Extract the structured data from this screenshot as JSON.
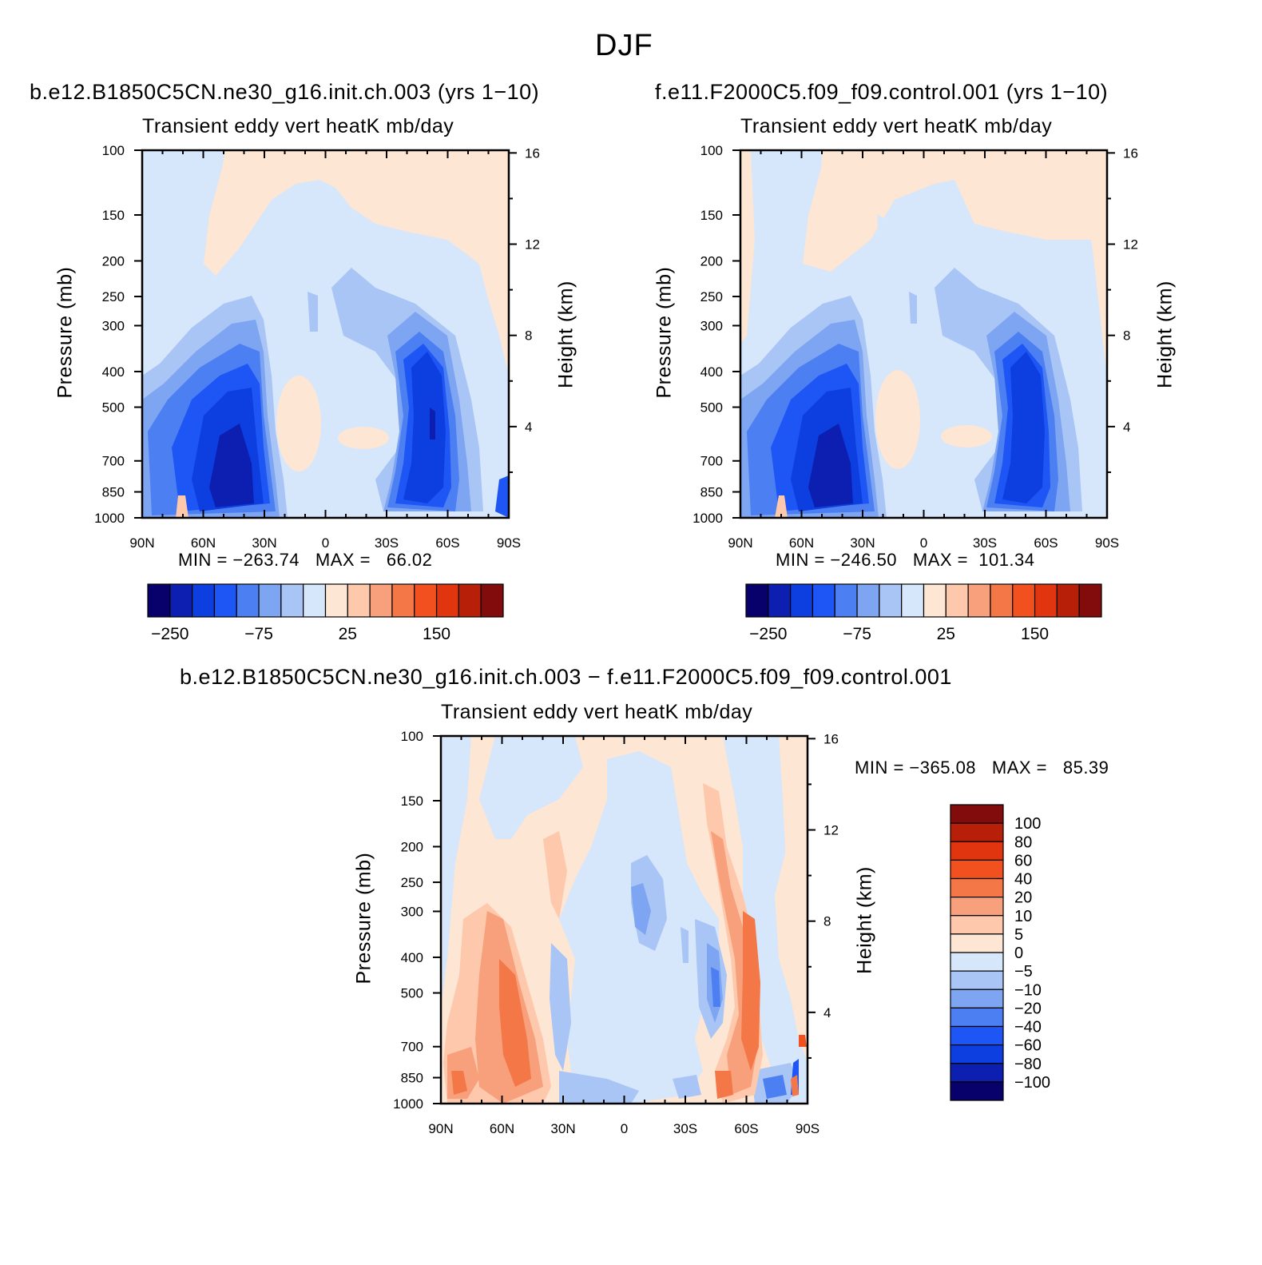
{
  "figure": {
    "title": "DJF"
  },
  "colors": {
    "levels_base": [
      "#08006b",
      "#0c1fb0",
      "#0d3ee0",
      "#1e55f5",
      "#4c7ff2",
      "#7ea5f2",
      "#a9c5f5",
      "#d6e6fb",
      "#fde6d4",
      "#fdc8ac",
      "#f7a07b",
      "#f47748",
      "#f2511f",
      "#e0350e",
      "#b81f08",
      "#820c0c"
    ],
    "levels_diff": [
      "#08006b",
      "#0c1fb0",
      "#0d3ee0",
      "#1e55f5",
      "#4c7ff2",
      "#7ea5f2",
      "#a9c5f5",
      "#d6e6fb",
      "#fde6d4",
      "#fdc8ac",
      "#f7a07b",
      "#f47748",
      "#f2511f",
      "#e0350e",
      "#b81f08",
      "#820c0c"
    ]
  },
  "chart_data": [
    {
      "type": "heatmap",
      "panel": "left",
      "title": "b.e12.B1850C5CN.ne30_g16.init.ch.003 (yrs 1−10)",
      "subtitle": "Transient eddy vert heatK mb/day",
      "xlabel": "",
      "ylabel": "Pressure (mb)",
      "ylabel_right": "Height (km)",
      "x_ticks": [
        "90N",
        "60N",
        "30N",
        "0",
        "30S",
        "60S",
        "90S"
      ],
      "y_ticks": [
        "100",
        "150",
        "200",
        "250",
        "300",
        "400",
        "500",
        "700",
        "850",
        "1000"
      ],
      "y_right_ticks": [
        "16",
        "12",
        "8",
        "4"
      ],
      "xlim": [
        90,
        -90
      ],
      "ylim": [
        1000,
        100
      ],
      "min_label": "MIN = −263.74   MAX =   66.02",
      "min": -263.74,
      "max": 66.02,
      "colorbar": {
        "orientation": "horizontal",
        "tick_labels": [
          "−250",
          "−75",
          "25",
          "150"
        ]
      }
    },
    {
      "type": "heatmap",
      "panel": "right",
      "title": "f.e11.F2000C5.f09_f09.control.001 (yrs 1−10)",
      "subtitle": "Transient eddy vert heatK mb/day",
      "xlabel": "",
      "ylabel": "Pressure (mb)",
      "ylabel_right": "Height (km)",
      "x_ticks": [
        "90N",
        "60N",
        "30N",
        "0",
        "30S",
        "60S",
        "90S"
      ],
      "y_ticks": [
        "100",
        "150",
        "200",
        "250",
        "300",
        "400",
        "500",
        "700",
        "850",
        "1000"
      ],
      "y_right_ticks": [
        "16",
        "12",
        "8",
        "4"
      ],
      "xlim": [
        90,
        -90
      ],
      "ylim": [
        1000,
        100
      ],
      "min_label": "MIN = −246.50   MAX =  101.34",
      "min": -246.5,
      "max": 101.34,
      "colorbar": {
        "orientation": "horizontal",
        "tick_labels": [
          "−250",
          "−75",
          "25",
          "150"
        ]
      }
    },
    {
      "type": "heatmap",
      "panel": "difference",
      "title": "b.e12.B1850C5CN.ne30_g16.init.ch.003 − f.e11.F2000C5.f09_f09.control.001",
      "subtitle": "Transient eddy vert heatK mb/day",
      "xlabel": "",
      "ylabel": "Pressure (mb)",
      "ylabel_right": "Height (km)",
      "x_ticks": [
        "90N",
        "60N",
        "30N",
        "0",
        "30S",
        "60S",
        "90S"
      ],
      "y_ticks": [
        "100",
        "150",
        "200",
        "250",
        "300",
        "400",
        "500",
        "700",
        "850",
        "1000"
      ],
      "y_right_ticks": [
        "16",
        "12",
        "8",
        "4"
      ],
      "xlim": [
        90,
        -90
      ],
      "ylim": [
        1000,
        100
      ],
      "min_label": "MIN = −365.08   MAX =   85.39",
      "min": -365.08,
      "max": 85.39,
      "colorbar": {
        "orientation": "vertical",
        "tick_labels": [
          "100",
          "80",
          "60",
          "40",
          "20",
          "10",
          "5",
          "0",
          "−5",
          "−10",
          "−20",
          "−40",
          "−60",
          "−80",
          "−100"
        ]
      }
    }
  ]
}
